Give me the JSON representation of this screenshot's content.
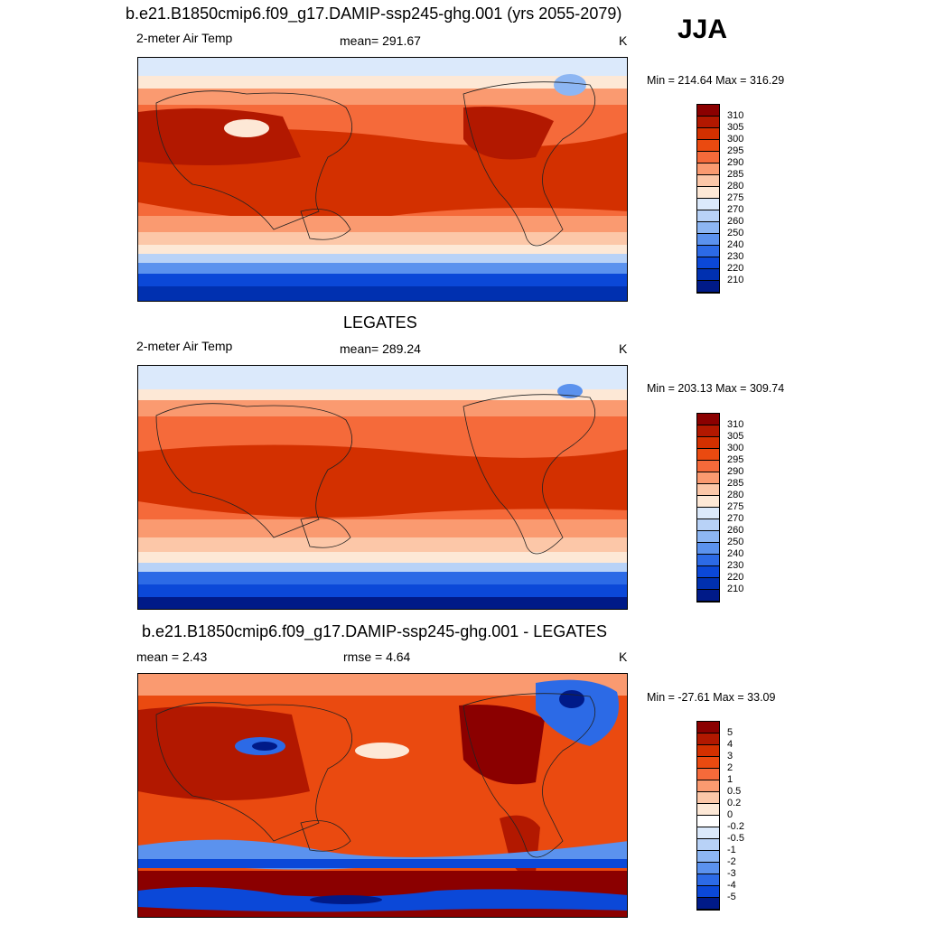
{
  "season": "JJA",
  "panels": [
    {
      "title": "b.e21.B1850cmip6.f09_g17.DAMIP-ssp245-ghg.001 (yrs 2055-2079)",
      "left_label": "2-meter Air Temp",
      "center_label": "mean= 291.67",
      "units": "K",
      "minmax": "Min = 214.64 Max = 316.29",
      "colorbar_labels": [
        "310",
        "305",
        "300",
        "295",
        "290",
        "285",
        "280",
        "275",
        "270",
        "260",
        "250",
        "240",
        "230",
        "220",
        "210"
      ],
      "colors": [
        "#8b0000",
        "#b21800",
        "#d33000",
        "#ea4a10",
        "#f56a3a",
        "#fa9a70",
        "#fcc7a8",
        "#fde8d6",
        "#dbe9fb",
        "#b8d2f7",
        "#8db6f3",
        "#5b92ee",
        "#2c6ae6",
        "#0b48d8",
        "#0030b0",
        "#001a88"
      ],
      "icon": "global-temperature-map"
    },
    {
      "title": "LEGATES",
      "left_label": "2-meter Air Temp",
      "center_label": "mean= 289.24",
      "units": "K",
      "minmax": "Min = 203.13 Max = 309.74",
      "colorbar_labels": [
        "310",
        "305",
        "300",
        "295",
        "290",
        "285",
        "280",
        "275",
        "270",
        "260",
        "250",
        "240",
        "230",
        "220",
        "210"
      ],
      "colors": [
        "#8b0000",
        "#b21800",
        "#d33000",
        "#ea4a10",
        "#f56a3a",
        "#fa9a70",
        "#fcc7a8",
        "#fde8d6",
        "#dbe9fb",
        "#b8d2f7",
        "#8db6f3",
        "#5b92ee",
        "#2c6ae6",
        "#0b48d8",
        "#0030b0",
        "#001a88"
      ],
      "icon": "global-temperature-map"
    },
    {
      "title": "b.e21.B1850cmip6.f09_g17.DAMIP-ssp245-ghg.001 - LEGATES",
      "left_label": "mean =   2.43",
      "center_label": "rmse =   4.64",
      "units": "K",
      "minmax": "Min = -27.61 Max =  33.09",
      "colorbar_labels": [
        "5",
        "4",
        "3",
        "2",
        "1",
        "0.5",
        "0.2",
        "0",
        "-0.2",
        "-0.5",
        "-1",
        "-2",
        "-3",
        "-4",
        "-5"
      ],
      "colors": [
        "#8b0000",
        "#b21800",
        "#d33000",
        "#ea4a10",
        "#f56a3a",
        "#fa9a70",
        "#fcc7a8",
        "#fde8d6",
        "#ffffff",
        "#dbe9fb",
        "#b8d2f7",
        "#8db6f3",
        "#5b92ee",
        "#2c6ae6",
        "#0b48d8",
        "#001a88"
      ],
      "icon": "global-difference-map"
    }
  ]
}
